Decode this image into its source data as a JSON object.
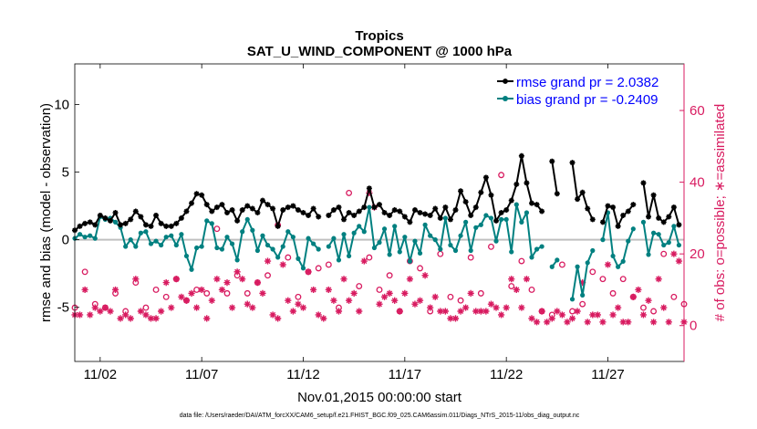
{
  "chart_data": {
    "type": "line",
    "title": "Tropics",
    "subtitle": "SAT_U_WIND_COMPONENT @ 1000 hPa",
    "xlabel": "Nov.01,2015 00:00:00 start",
    "ylabel_left": "rmse and bias (model - observation)",
    "ylabel_right": "# of obs: o=possible; ∗=assimilated",
    "xlim": [
      0,
      30
    ],
    "ylim_left": [
      -9,
      13
    ],
    "ylim_right": [
      -10,
      73
    ],
    "x_ticks": [
      1.25,
      6.25,
      11.25,
      16.25,
      21.25,
      26.25
    ],
    "x_tick_labels": [
      "11/02",
      "11/07",
      "11/12",
      "11/17",
      "11/22",
      "11/27"
    ],
    "y_left_ticks": [
      -5,
      0,
      5,
      10
    ],
    "y_left_tick_labels": [
      "-5",
      "0",
      "5",
      "10"
    ],
    "y_right_ticks": [
      0,
      20,
      40,
      60
    ],
    "y_right_tick_labels": [
      "0",
      "20",
      "40",
      "60"
    ],
    "footer": "data file: /Users/raeder/DAI/ATM_forcXX/CAM6_setup/f.e21.FHIST_BGC.f09_025.CAM6assim.011/Diags_NTrS_2015-11/obs_diag_output.nc",
    "colors": {
      "rmse": "#000000",
      "bias": "#008080",
      "obs": "#d81b60",
      "zero_line": "#bfbfbf",
      "legend_text": "#0000ff"
    },
    "series": [
      {
        "name": "rmse grand pr = 2.0382",
        "color": "#000000",
        "x": [
          0.0,
          0.25,
          0.5,
          0.75,
          1.0,
          1.25,
          1.5,
          1.75,
          2.0,
          2.25,
          2.5,
          2.75,
          3.0,
          3.25,
          3.5,
          3.75,
          4.0,
          4.25,
          4.5,
          4.75,
          5.0,
          5.25,
          5.5,
          5.75,
          6.0,
          6.25,
          6.5,
          6.75,
          7.0,
          7.25,
          7.5,
          7.75,
          8.0,
          8.25,
          8.5,
          8.75,
          9.0,
          9.25,
          9.5,
          9.75,
          10.0,
          10.25,
          10.5,
          10.75,
          11.0,
          11.25,
          11.5,
          11.75,
          12.0,
          12.25,
          12.5,
          12.75,
          13.0,
          13.25,
          13.5,
          13.75,
          14.0,
          14.25,
          14.5,
          14.75,
          15.0,
          15.25,
          15.5,
          15.75,
          16.0,
          16.25,
          16.5,
          16.75,
          17.0,
          17.25,
          17.5,
          17.75,
          18.0,
          18.25,
          18.5,
          18.75,
          19.0,
          19.25,
          19.5,
          19.75,
          20.0,
          20.25,
          20.5,
          20.75,
          21.0,
          21.25,
          21.5,
          21.75,
          22.0,
          22.25,
          22.5,
          22.75,
          23.0,
          23.25,
          23.5,
          23.75,
          24.0,
          24.25,
          24.5,
          24.75,
          25.0,
          25.25,
          25.5,
          25.75,
          26.0,
          26.25,
          26.5,
          26.75,
          27.0,
          27.25,
          27.5,
          27.75,
          28.0,
          28.25,
          28.5,
          28.75,
          29.0,
          29.25,
          29.5,
          29.75,
          30.0
        ],
        "values": [
          0.7,
          1.0,
          1.2,
          1.3,
          1.1,
          1.8,
          1.6,
          1.4,
          2.0,
          1.1,
          1.2,
          1.5,
          2.1,
          1.7,
          1.1,
          1.0,
          1.8,
          1.2,
          1.0,
          1.0,
          1.2,
          1.6,
          2.1,
          2.7,
          3.4,
          3.3,
          2.6,
          2.1,
          2.4,
          2.6,
          2.0,
          2.2,
          1.4,
          2.2,
          2.5,
          2.3,
          2.0,
          2.9,
          2.6,
          2.3,
          1.0,
          2.2,
          2.4,
          2.5,
          2.2,
          2.0,
          1.8,
          2.3,
          1.7,
          null,
          1.8,
          2.2,
          2.4,
          1.5,
          2.0,
          1.8,
          2.1,
          2.4,
          3.8,
          2.4,
          2.6,
          2.0,
          1.8,
          2.2,
          2.1,
          1.7,
          1.3,
          2.2,
          2.0,
          1.9,
          1.8,
          2.3,
          1.6,
          2.4,
          1.5,
          2.2,
          3.6,
          2.8,
          1.8,
          2.4,
          3.5,
          4.6,
          3.3,
          1.4,
          2.0,
          2.2,
          2.9,
          4.1,
          6.2,
          4.2,
          2.7,
          2.6,
          2.1,
          null,
          5.8,
          3.4,
          null,
          null,
          5.7,
          3.0,
          3.5,
          2.3,
          1.5,
          null,
          1.3,
          2.5,
          2.4,
          1.0,
          1.8,
          2.1,
          2.6,
          null,
          4.2,
          1.7,
          3.3,
          1.6,
          1.3,
          1.7,
          2.4,
          1.1,
          null
        ]
      },
      {
        "name": "bias grand pr = -0.2409",
        "color": "#008080",
        "x": [
          0.0,
          0.25,
          0.5,
          0.75,
          1.0,
          1.25,
          1.5,
          1.75,
          2.0,
          2.25,
          2.5,
          2.75,
          3.0,
          3.25,
          3.5,
          3.75,
          4.0,
          4.25,
          4.5,
          4.75,
          5.0,
          5.25,
          5.5,
          5.75,
          6.0,
          6.25,
          6.5,
          6.75,
          7.0,
          7.25,
          7.5,
          7.75,
          8.0,
          8.25,
          8.5,
          8.75,
          9.0,
          9.25,
          9.5,
          9.75,
          10.0,
          10.25,
          10.5,
          10.75,
          11.0,
          11.25,
          11.5,
          11.75,
          12.0,
          12.25,
          12.5,
          12.75,
          13.0,
          13.25,
          13.5,
          13.75,
          14.0,
          14.25,
          14.5,
          14.75,
          15.0,
          15.25,
          15.5,
          15.75,
          16.0,
          16.25,
          16.5,
          16.75,
          17.0,
          17.25,
          17.5,
          17.75,
          18.0,
          18.25,
          18.5,
          18.75,
          19.0,
          19.25,
          19.5,
          19.75,
          20.0,
          20.25,
          20.5,
          20.75,
          21.0,
          21.25,
          21.5,
          21.75,
          22.0,
          22.25,
          22.5,
          22.75,
          23.0,
          23.25,
          23.5,
          23.75,
          24.0,
          24.25,
          24.5,
          24.75,
          25.0,
          25.25,
          25.5,
          25.75,
          26.0,
          26.25,
          26.5,
          26.75,
          27.0,
          27.25,
          27.5,
          27.75,
          28.0,
          28.25,
          28.5,
          28.75,
          29.0,
          29.25,
          29.5,
          29.75,
          30.0
        ],
        "values": [
          0.1,
          0.4,
          0.2,
          0.3,
          0.1,
          1.7,
          1.5,
          1.6,
          1.3,
          0.9,
          -0.5,
          0.0,
          -0.5,
          0.5,
          0.6,
          -0.3,
          -0.1,
          -0.4,
          0.2,
          0.3,
          -0.4,
          0.4,
          -1.2,
          -2.2,
          -0.6,
          -0.5,
          1.4,
          1.2,
          -0.6,
          -0.7,
          0.2,
          -0.3,
          -1.5,
          0.6,
          1.5,
          0.7,
          -0.8,
          0.3,
          -0.4,
          -0.7,
          -1.3,
          -0.5,
          0.6,
          0.2,
          -1.4,
          -2.1,
          0.1,
          -0.3,
          -0.7,
          null,
          -0.5,
          0.1,
          -1.5,
          0.4,
          -1.2,
          0.5,
          1.0,
          0.6,
          2.4,
          -0.6,
          -0.2,
          0.8,
          -1.1,
          1.0,
          -0.9,
          0.2,
          -1.6,
          -0.1,
          -1.0,
          1.1,
          0.3,
          0.0,
          -0.7,
          1.6,
          -0.4,
          -0.8,
          0.3,
          1.3,
          -0.8,
          0.9,
          1.1,
          1.8,
          1.6,
          -0.1,
          1.5,
          1.5,
          -0.9,
          2.6,
          1.3,
          2.0,
          -1.3,
          -0.7,
          -0.5,
          null,
          -2.0,
          -1.5,
          null,
          null,
          -4.4,
          -2.0,
          -4.1,
          -1.7,
          -0.8,
          null,
          0.0,
          2.0,
          -1.2,
          -2.0,
          -1.6,
          -0.1,
          0.8,
          null,
          1.3,
          -1.1,
          0.5,
          0.4,
          -0.4,
          -0.2,
          1.0,
          -0.4,
          null
        ]
      }
    ],
    "obs_possible": {
      "name": "possible",
      "marker": "o",
      "color": "#d81b60",
      "x": [
        0.0,
        0.5,
        1.0,
        1.5,
        2.0,
        2.5,
        3.0,
        3.5,
        4.0,
        4.5,
        5.0,
        5.5,
        6.0,
        6.5,
        7.0,
        7.5,
        8.0,
        8.5,
        9.0,
        9.5,
        10.0,
        10.5,
        11.0,
        11.5,
        12.0,
        12.5,
        13.0,
        13.5,
        14.0,
        14.5,
        15.0,
        15.5,
        16.0,
        16.5,
        17.0,
        17.5,
        18.0,
        18.5,
        19.0,
        19.5,
        20.0,
        20.5,
        21.0,
        21.5,
        22.0,
        22.5,
        23.0,
        23.5,
        24.0,
        24.5,
        25.0,
        25.5,
        26.0,
        26.5,
        27.0,
        27.5,
        28.0,
        28.5,
        29.0,
        29.5,
        30.0
      ],
      "values": [
        5,
        15,
        6,
        5,
        9,
        4,
        12,
        5,
        10,
        8,
        13,
        7,
        10,
        9,
        27,
        9,
        14,
        9,
        12,
        14,
        28,
        19,
        8,
        15,
        16,
        17,
        5,
        37,
        11,
        19,
        10,
        14,
        4,
        18,
        16,
        4,
        20,
        8,
        7,
        19,
        9,
        22,
        42,
        11,
        18,
        10,
        4,
        3,
        17,
        4,
        6,
        15,
        13,
        9,
        13,
        8,
        5,
        4,
        20,
        8,
        6
      ]
    },
    "obs_assimilated": {
      "name": "assimilated",
      "marker": "*",
      "color": "#d81b60",
      "x": [
        0.0,
        0.25,
        0.5,
        0.75,
        1.0,
        1.25,
        1.5,
        1.75,
        2.0,
        2.25,
        2.5,
        2.75,
        3.0,
        3.25,
        3.5,
        3.75,
        4.0,
        4.25,
        4.5,
        4.75,
        5.0,
        5.25,
        5.5,
        5.75,
        6.0,
        6.25,
        6.5,
        6.75,
        7.0,
        7.25,
        7.5,
        7.75,
        8.0,
        8.25,
        8.5,
        8.75,
        9.0,
        9.25,
        9.5,
        9.75,
        10.0,
        10.25,
        10.5,
        10.75,
        11.0,
        11.25,
        11.5,
        11.75,
        12.0,
        12.25,
        12.5,
        12.75,
        13.0,
        13.25,
        13.5,
        13.75,
        14.0,
        14.25,
        14.5,
        14.75,
        15.0,
        15.25,
        15.5,
        15.75,
        16.0,
        16.25,
        16.5,
        16.75,
        17.0,
        17.25,
        17.5,
        17.75,
        18.0,
        18.25,
        18.5,
        18.75,
        19.0,
        19.25,
        19.5,
        19.75,
        20.0,
        20.25,
        20.5,
        20.75,
        21.0,
        21.25,
        21.5,
        21.75,
        22.0,
        22.25,
        22.5,
        22.75,
        23.0,
        23.25,
        23.5,
        23.75,
        24.0,
        24.25,
        24.5,
        24.75,
        25.0,
        25.25,
        25.5,
        25.75,
        26.0,
        26.25,
        26.5,
        26.75,
        27.0,
        27.25,
        27.5,
        27.75,
        28.0,
        28.25,
        28.5,
        28.75,
        29.0,
        29.25,
        29.5,
        29.75,
        30.0
      ],
      "values": [
        3,
        3,
        10,
        3,
        5,
        4,
        5,
        4,
        10,
        2,
        3,
        2,
        13,
        4,
        3,
        2,
        2,
        4,
        12,
        5,
        13,
        8,
        7,
        9,
        5,
        10,
        2,
        7,
        13,
        10,
        12,
        5,
        15,
        13,
        6,
        5,
        12,
        9,
        18,
        3,
        2,
        17,
        7,
        4,
        6,
        5,
        15,
        10,
        3,
        2,
        10,
        7,
        4,
        13,
        7,
        9,
        4,
        18,
        37,
        33,
        6,
        8,
        9,
        7,
        4,
        9,
        13,
        6,
        7,
        14,
        5,
        8,
        4,
        4,
        2,
        2,
        4,
        5,
        9,
        4,
        4,
        4,
        6,
        5,
        3,
        5,
        13,
        10,
        5,
        13,
        2,
        1,
        4,
        1,
        2,
        4,
        3,
        1,
        2,
        4,
        12,
        1,
        3,
        3,
        1,
        17,
        3,
        5,
        1,
        1,
        8,
        10,
        3,
        7,
        1,
        13,
        5,
        1,
        20,
        18,
        1
      ]
    }
  }
}
